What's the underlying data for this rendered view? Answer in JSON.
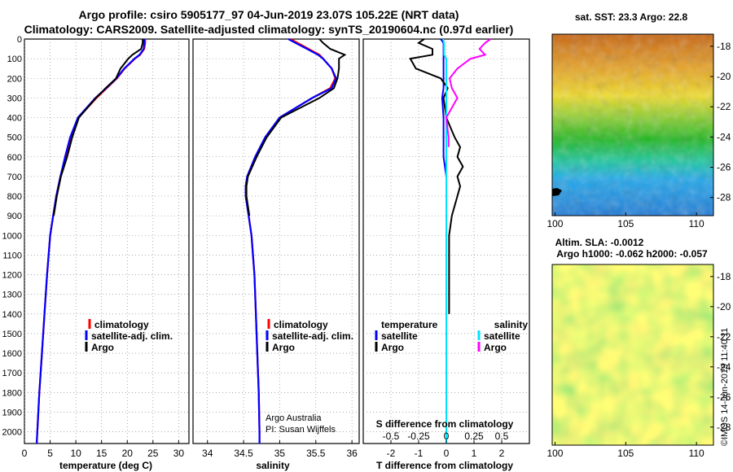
{
  "header": {
    "title_line1": "Argo profile: csiro 5905177_97 04-Jun-2019 23.07S 105.22E (NRT data)",
    "title_line2": "Climatology: CARS2009. Satellite-adjusted climatology: synTS_20190604.nc (0.97d earlier)"
  },
  "colors": {
    "climatology": "#ff0000",
    "satellite": "#0000ff",
    "argo": "#000000",
    "sat_salinity": "#00e5ff",
    "argo_salinity": "#ff00ff"
  },
  "chart_data": [
    {
      "type": "line",
      "id": "temperature",
      "xlabel": "temperature (deg C)",
      "ylabel": "",
      "xlim": [
        0,
        32
      ],
      "ylim": [
        2060,
        0
      ],
      "x_ticks": [
        "0",
        "5",
        "10",
        "15",
        "20",
        "25",
        "30"
      ],
      "y_ticks": [
        "0",
        "100",
        "200",
        "300",
        "400",
        "500",
        "600",
        "700",
        "800",
        "900",
        "1000",
        "1100",
        "1200",
        "1300",
        "1400",
        "1500",
        "1600",
        "1700",
        "1800",
        "1900",
        "2000"
      ],
      "legend": [
        "climatology",
        "satellite-adj. clim.",
        "Argo"
      ],
      "depth": [
        0,
        20,
        50,
        80,
        100,
        150,
        200,
        250,
        300,
        400,
        500,
        600,
        700,
        800,
        900,
        1000,
        1200,
        1400,
        1600,
        1800,
        2000,
        2060
      ],
      "series": [
        {
          "name": "climatology",
          "values": [
            23.5,
            23.5,
            23.3,
            22.5,
            21.5,
            19.5,
            18.0,
            16.0,
            14.0,
            10.5,
            9.0,
            8.0,
            7.0,
            6.2,
            5.6,
            5.0,
            4.4,
            3.9,
            3.4,
            2.9,
            2.5,
            2.4
          ]
        },
        {
          "name": "satellite-adj. clim.",
          "values": [
            23.3,
            23.3,
            23.2,
            22.4,
            21.4,
            19.4,
            17.9,
            15.9,
            13.8,
            10.4,
            8.9,
            7.9,
            7.0,
            6.2,
            5.6,
            5.0,
            4.4,
            3.9,
            3.4,
            2.9,
            2.5,
            2.4
          ]
        },
        {
          "name": "Argo",
          "values": [
            23.0,
            23.0,
            22.7,
            21.0,
            20.2,
            18.7,
            17.8,
            15.8,
            13.9,
            10.6,
            9.3,
            8.3,
            7.1,
            6.3,
            5.7
          ]
        }
      ],
      "annotations": []
    },
    {
      "type": "line",
      "id": "salinity",
      "xlabel": "salinity",
      "ylabel": "",
      "xlim": [
        33.8,
        36.1
      ],
      "ylim": [
        2060,
        0
      ],
      "x_ticks": [
        "34",
        "34.5",
        "35",
        "35.5",
        "36"
      ],
      "legend": [
        "climatology",
        "satellite-adj. clim.",
        "Argo"
      ],
      "depth": [
        0,
        20,
        50,
        80,
        100,
        150,
        200,
        250,
        300,
        400,
        500,
        600,
        700,
        750,
        800,
        900,
        1000,
        1200,
        1400,
        1600,
        1800,
        2000,
        2060
      ],
      "series": [
        {
          "name": "climatology",
          "values": [
            35.15,
            35.25,
            35.4,
            35.55,
            35.6,
            35.72,
            35.77,
            35.7,
            35.45,
            35.0,
            34.8,
            34.66,
            34.55,
            34.53,
            34.53,
            34.57,
            34.61,
            34.65,
            34.67,
            34.69,
            34.71,
            34.72,
            34.72
          ]
        },
        {
          "name": "satellite-adj. clim.",
          "values": [
            35.12,
            35.22,
            35.38,
            35.53,
            35.6,
            35.72,
            35.78,
            35.72,
            35.45,
            35.0,
            34.8,
            34.66,
            34.55,
            34.53,
            34.53,
            34.57,
            34.61,
            34.65,
            34.67,
            34.69,
            34.71,
            34.72,
            34.72
          ]
        },
        {
          "name": "Argo",
          "values": [
            35.55,
            35.6,
            35.7,
            35.9,
            35.82,
            35.82,
            35.8,
            35.75,
            35.55,
            35.02,
            34.82,
            34.68,
            34.56,
            34.54,
            34.54,
            34.58
          ]
        }
      ],
      "annotations": [
        "Argo Australia",
        "PI: Susan Wijffels"
      ]
    },
    {
      "type": "line",
      "id": "difference",
      "xlabel": "T difference from climatology",
      "secondary_xlabel": "S difference from climatology",
      "xlim": [
        -3,
        3
      ],
      "secondary_xlim": [
        -0.75,
        0.75
      ],
      "ylim": [
        2060,
        0
      ],
      "x_ticks": [
        "-2",
        "-1",
        "0",
        "1",
        "2"
      ],
      "secondary_x_ticks": [
        "-0.5",
        "-0.25",
        "0",
        "0.25",
        "0.5"
      ],
      "legend_left_title": "temperature",
      "legend_right_title": "salinity",
      "legend": [
        "satellite",
        "Argo",
        "satellite",
        "Argo"
      ],
      "depth": [
        0,
        20,
        50,
        80,
        100,
        150,
        200,
        250,
        300,
        400,
        500,
        550,
        600,
        650,
        700,
        750,
        800,
        900,
        1000,
        1200,
        1400,
        1600,
        1800,
        2000,
        2060
      ],
      "series": [
        {
          "name": "T satellite",
          "values": [
            -0.2,
            -0.1,
            -0.1,
            -0.1,
            -0.1,
            -0.1,
            -0.1,
            -0.1,
            -0.15,
            -0.1,
            -0.1,
            -0.1,
            -0.1,
            -0.05,
            0,
            0,
            0,
            0,
            0,
            0,
            0,
            0,
            0,
            0,
            0
          ]
        },
        {
          "name": "T Argo",
          "values": [
            -0.8,
            -1.0,
            -0.5,
            -0.5,
            -1.3,
            -1.1,
            -0.2,
            0.05,
            -0.1,
            0,
            0.3,
            0.5,
            0.4,
            0.6,
            0.4,
            0.5,
            0.4,
            0.2,
            0.1,
            0.1,
            0.1
          ]
        },
        {
          "name": "S satellite",
          "values": [
            -0.03,
            -0.02,
            -0.02,
            -0.02,
            0,
            0,
            0,
            0,
            0,
            0,
            0,
            0,
            0,
            0,
            0,
            0,
            0,
            0,
            0,
            0,
            0,
            0,
            0,
            0,
            0
          ]
        },
        {
          "name": "S Argo",
          "values": [
            0.4,
            0.35,
            0.3,
            0.35,
            0.22,
            0.1,
            0.03,
            0.05,
            0.1,
            0,
            0.02,
            0.02
          ]
        }
      ]
    },
    {
      "type": "heatmap",
      "id": "sst_map",
      "title": "sat. SST: 23.3 Argo: 22.8",
      "x_ticks": [
        "100",
        "105",
        "110"
      ],
      "y_ticks": [
        "-18",
        "-20",
        "-22",
        "-24",
        "-26",
        "-28"
      ],
      "xlim": [
        99.8,
        111.2
      ],
      "ylim": [
        -29.2,
        -17.2
      ]
    },
    {
      "type": "heatmap",
      "id": "sla_map",
      "title_line1": "Altim. SLA: -0.0012",
      "title_line2": "Argo h1000: -0.062 h2000: -0.057",
      "x_ticks": [
        "100",
        "105",
        "110"
      ],
      "y_ticks": [
        "-18",
        "-20",
        "-22",
        "-24",
        "-26",
        "-28"
      ],
      "xlim": [
        99.8,
        111.2
      ],
      "ylim": [
        -29.2,
        -17.2
      ]
    }
  ],
  "footer": {
    "credit": "©IMOS 14-Jun-2019 11:40:11"
  }
}
